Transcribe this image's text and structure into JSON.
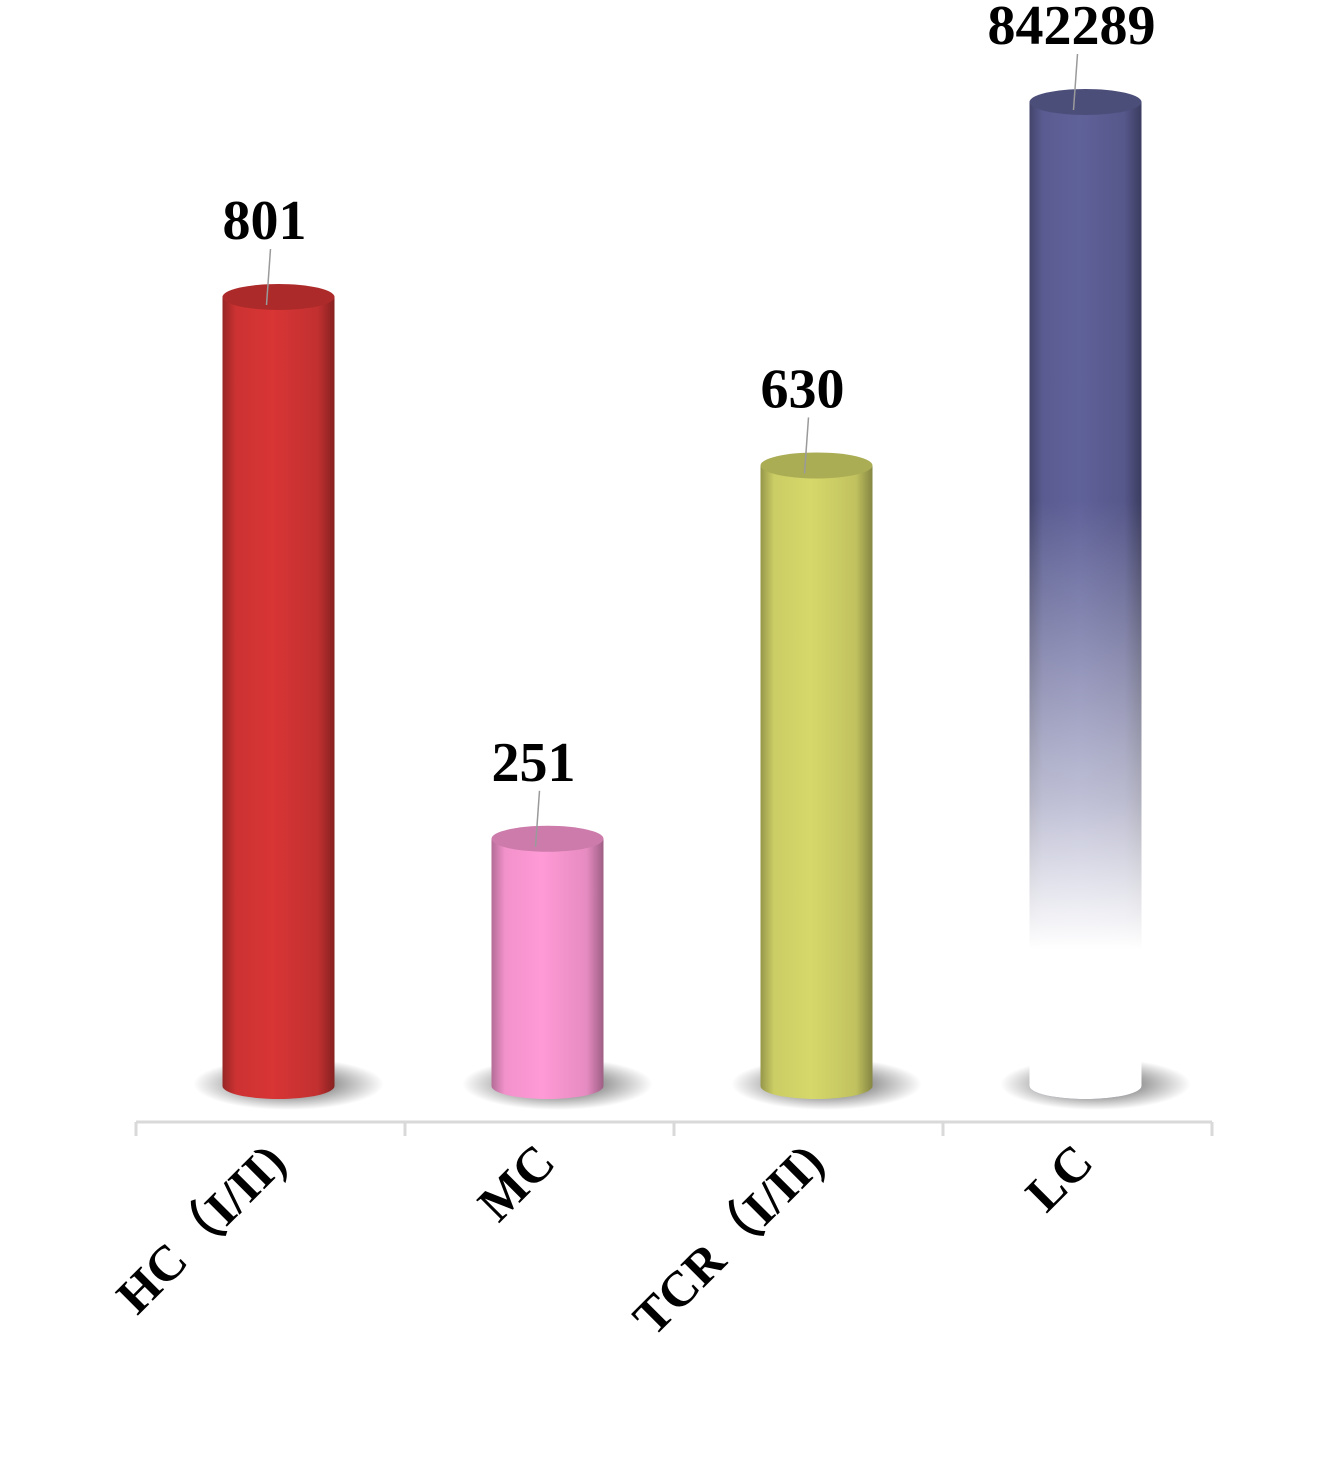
{
  "chart_data": {
    "type": "bar",
    "style": "3d-cylinder",
    "title": "",
    "xlabel": "",
    "ylabel": "",
    "categories": [
      "HC（I/II)",
      "MC",
      "TCR（I/II)",
      "LC"
    ],
    "values": [
      801,
      251,
      630,
      842289
    ],
    "value_labels": [
      "801",
      "251",
      "630",
      "842289"
    ],
    "colors": [
      "#d83535",
      "#ff9ad6",
      "#d6d86a",
      "#5f6199"
    ],
    "grid": false,
    "legend": "none",
    "y_axis_visible": false,
    "note": ""
  }
}
